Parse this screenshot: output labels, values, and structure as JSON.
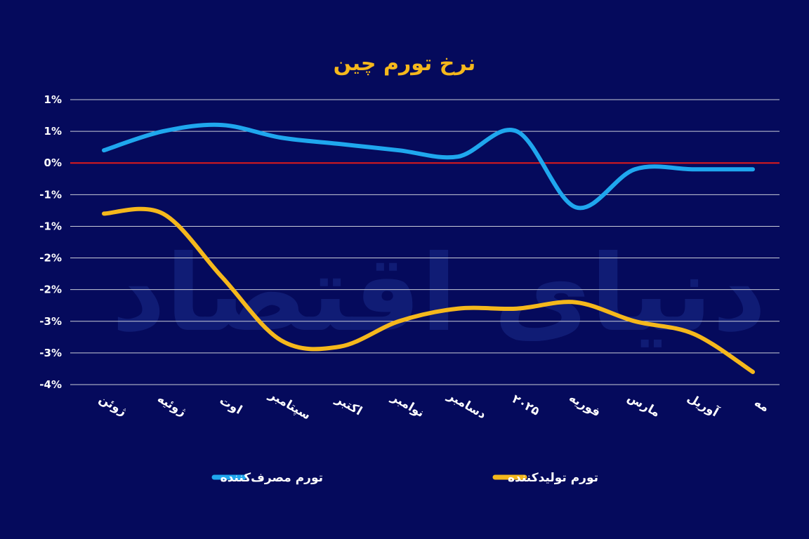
{
  "chart_data": {
    "type": "line",
    "title": "نرخ تورم چین",
    "watermark": "دنیای اقتصاد",
    "categories": [
      "ژوئن",
      "ژوئیه",
      "اوت",
      "سپتامبر",
      "اکتبر",
      "نوامبر",
      "دسامبر",
      "۲۰۲۵",
      "فوریه",
      "مارس",
      "آوریل",
      "مه"
    ],
    "y_tick_labels": [
      "1%",
      "1%",
      "0%",
      "-1%",
      "-1%",
      "-2%",
      "-2%",
      "-3%",
      "-3%",
      "-4%"
    ],
    "ylim": [
      -3.5,
      1.0
    ],
    "grid": true,
    "zero_line": true,
    "legend_position": "bottom",
    "series": [
      {
        "name": "تورم مصرف‌کننده",
        "color": "#1fa7ee",
        "values": [
          0.2,
          0.5,
          0.6,
          0.4,
          0.3,
          0.2,
          0.1,
          0.5,
          -0.7,
          -0.1,
          -0.1,
          -0.1
        ]
      },
      {
        "name": "تورم تولیدکننده",
        "color": "#f5b81c",
        "values": [
          -0.8,
          -0.8,
          -1.8,
          -2.8,
          -2.9,
          -2.5,
          -2.3,
          -2.3,
          -2.2,
          -2.5,
          -2.7,
          -3.3
        ]
      }
    ]
  },
  "colors": {
    "background": "#050a5c",
    "grid": "#c9ccd8",
    "zero_line": "#e01b1b",
    "title": "#f5b81c"
  }
}
